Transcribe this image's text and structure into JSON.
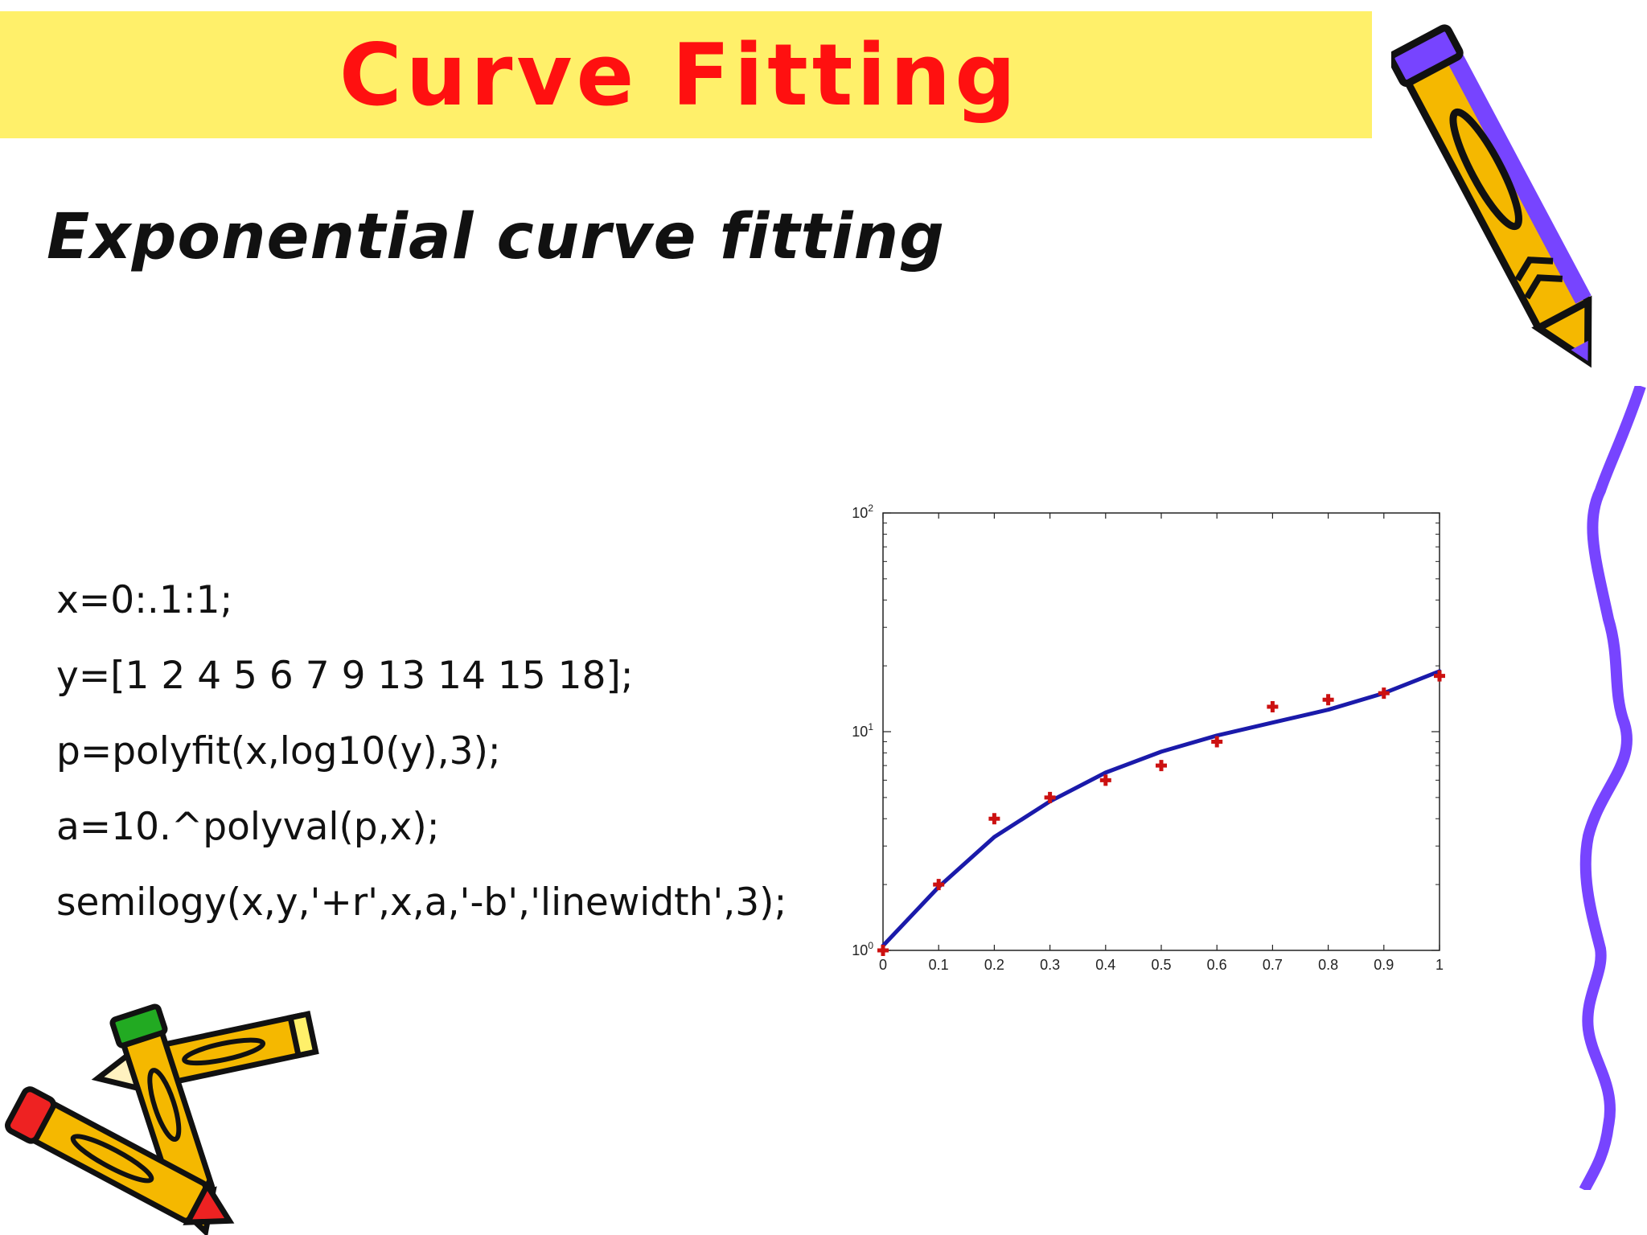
{
  "slide": {
    "title": "Curve Fitting",
    "subtitle": "Exponential curve fitting",
    "code_lines": [
      "x=0:.1:1;",
      "y=[1 2 4 5 6 7 9 13 14 15 18];",
      "p=polyfit(x,log10(y),3);",
      "a=10.^polyval(p,x);",
      "semilogy(x,y,'+r',x,a,'-b','linewidth',3);"
    ]
  },
  "colors": {
    "title_bar": "#fff06a",
    "title_text": "#ff1010",
    "data_marker": "#cc1111",
    "fit_line": "#1a1aaa",
    "squiggle": "#7744ff"
  },
  "decorations": [
    "pencil-icon",
    "crossed-pencils-icon",
    "squiggle-border"
  ],
  "chart_data": {
    "type": "line",
    "yscale": "log",
    "xlim": [
      0,
      1
    ],
    "ylim": [
      1,
      100
    ],
    "grid": false,
    "x_ticks": [
      "0",
      "0.1",
      "0.2",
      "0.3",
      "0.4",
      "0.5",
      "0.6",
      "0.7",
      "0.8",
      "0.9",
      "1"
    ],
    "y_ticks": [
      {
        "base": "10",
        "exp": "0",
        "value": 1
      },
      {
        "base": "10",
        "exp": "1",
        "value": 10
      },
      {
        "base": "10",
        "exp": "2",
        "value": 100
      }
    ],
    "series": [
      {
        "style": "markers",
        "marker": "+",
        "color": "#cc1111",
        "x": [
          0,
          0.1,
          0.2,
          0.3,
          0.4,
          0.5,
          0.6,
          0.7,
          0.8,
          0.9,
          1
        ],
        "y": [
          1,
          2,
          4,
          5,
          6,
          7,
          9,
          13,
          14,
          15,
          18
        ]
      },
      {
        "style": "line",
        "color": "#1a1aaa",
        "x": [
          0,
          0.1,
          0.2,
          0.3,
          0.4,
          0.5,
          0.6,
          0.7,
          0.8,
          0.9,
          1
        ],
        "y": [
          1.05,
          1.95,
          3.3,
          4.8,
          6.5,
          8.1,
          9.6,
          11.0,
          12.6,
          15.0,
          18.9
        ]
      }
    ]
  }
}
